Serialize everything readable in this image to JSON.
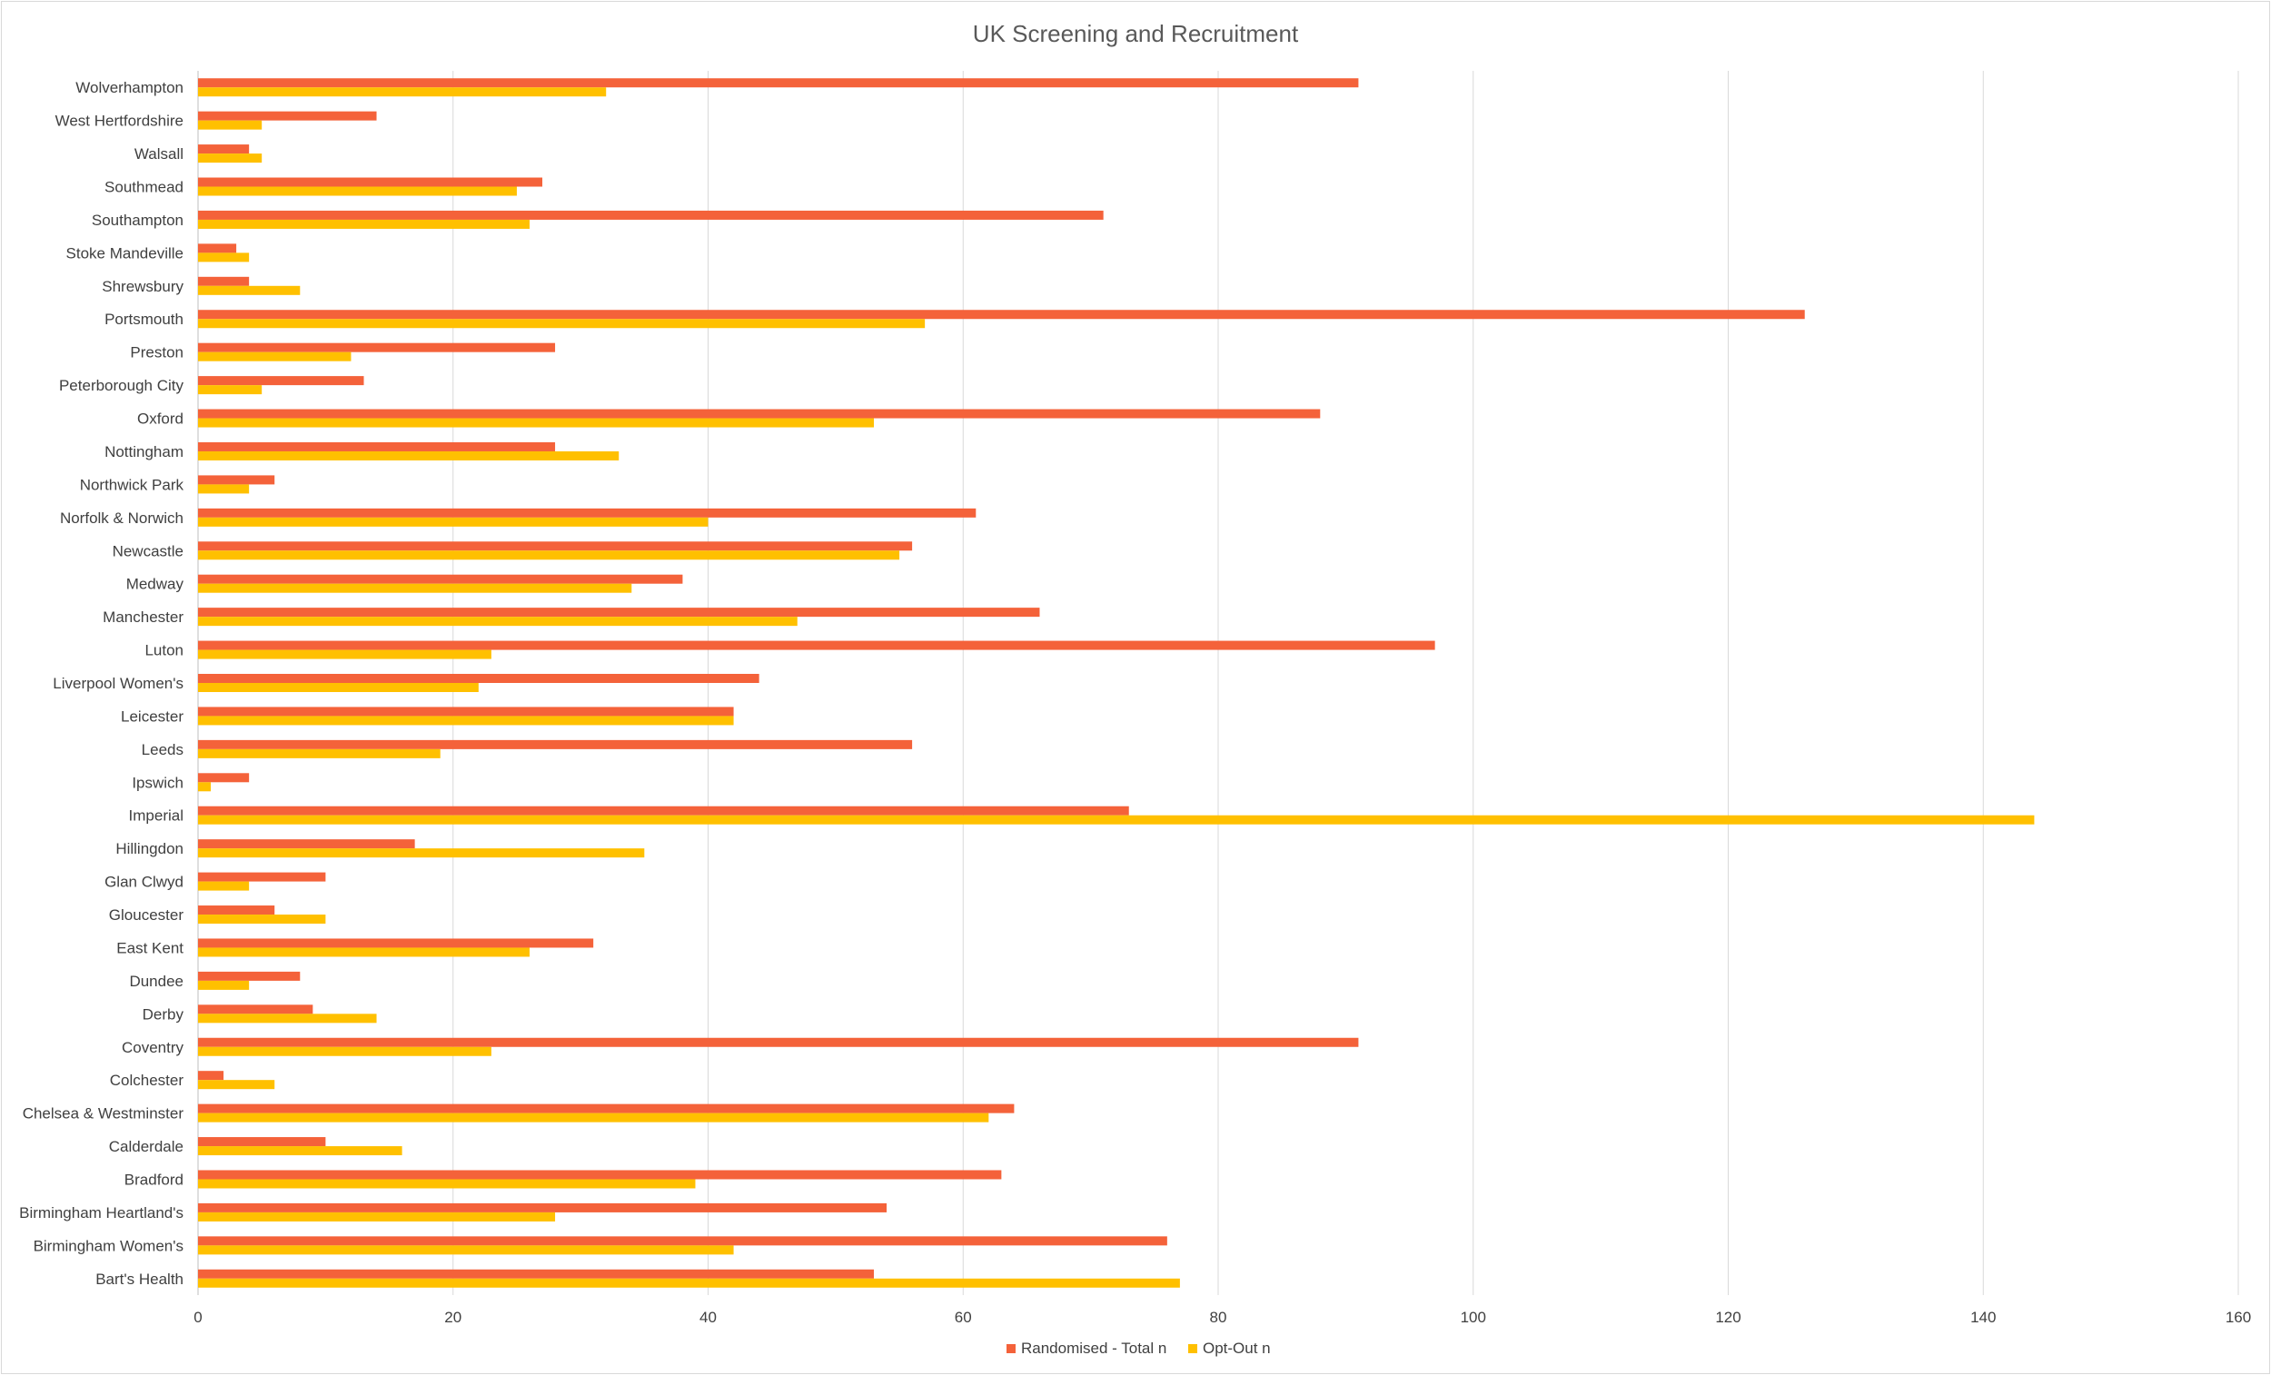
{
  "chart_data": {
    "type": "bar",
    "orientation": "horizontal",
    "title": "UK Screening and Recruitment",
    "xlabel": "",
    "ylabel": "",
    "xlim": [
      0,
      160
    ],
    "x_ticks": [
      0,
      20,
      40,
      60,
      80,
      100,
      120,
      140,
      160
    ],
    "grid": "vertical",
    "legend_position": "bottom",
    "categories": [
      "Wolverhampton",
      "West Hertfordshire",
      "Walsall",
      "Southmead",
      "Southampton",
      "Stoke Mandeville",
      "Shrewsbury",
      "Portsmouth",
      "Preston",
      "Peterborough City",
      "Oxford",
      "Nottingham",
      "Northwick Park",
      "Norfolk & Norwich",
      "Newcastle",
      "Medway",
      "Manchester",
      "Luton",
      "Liverpool Women's",
      "Leicester",
      "Leeds",
      "Ipswich",
      "Imperial",
      "Hillingdon",
      "Glan Clwyd",
      "Gloucester",
      "East Kent",
      "Dundee",
      "Derby",
      "Coventry",
      "Colchester",
      "Chelsea & Westminster",
      "Calderdale",
      "Bradford",
      "Birmingham Heartland's",
      "Birmingham Women's",
      "Bart's Health"
    ],
    "series": [
      {
        "name": "Randomised - Total n",
        "color": "#F4623A",
        "values": [
          91,
          14,
          4,
          27,
          71,
          3,
          4,
          126,
          28,
          13,
          88,
          28,
          6,
          61,
          56,
          38,
          66,
          97,
          44,
          42,
          56,
          4,
          73,
          17,
          10,
          6,
          31,
          8,
          9,
          91,
          2,
          64,
          10,
          63,
          54,
          76,
          53
        ]
      },
      {
        "name": "Opt-Out n",
        "color": "#FFC000",
        "values": [
          32,
          5,
          5,
          25,
          26,
          4,
          8,
          57,
          12,
          5,
          53,
          33,
          4,
          40,
          55,
          34,
          47,
          23,
          22,
          42,
          19,
          1,
          144,
          35,
          4,
          10,
          26,
          4,
          14,
          23,
          6,
          62,
          16,
          39,
          28,
          42,
          77
        ]
      }
    ]
  }
}
